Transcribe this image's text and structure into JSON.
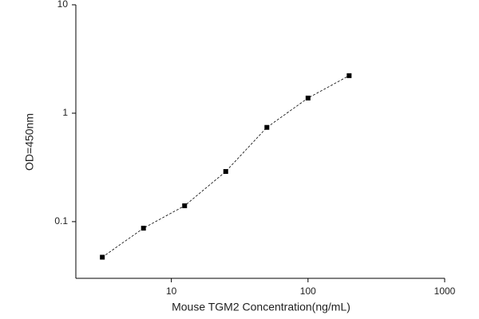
{
  "chart_data": {
    "type": "line",
    "x_label": "Mouse TGM2 Concentration(ng/mL)",
    "y_label": "OD=450nm",
    "x": [
      3.125,
      6.25,
      12.5,
      25,
      50,
      100,
      200
    ],
    "series": [
      {
        "color": "#000000",
        "values": [
          0.047,
          0.087,
          0.14,
          0.29,
          0.74,
          1.38,
          2.22
        ]
      }
    ],
    "xlim": [
      2,
      1000
    ],
    "ylim": [
      0.03,
      10
    ],
    "xticks": [
      10,
      100,
      1000
    ],
    "yticks": [
      0.1,
      1,
      10
    ],
    "xscale": "log",
    "yscale": "log",
    "grid": false
  }
}
